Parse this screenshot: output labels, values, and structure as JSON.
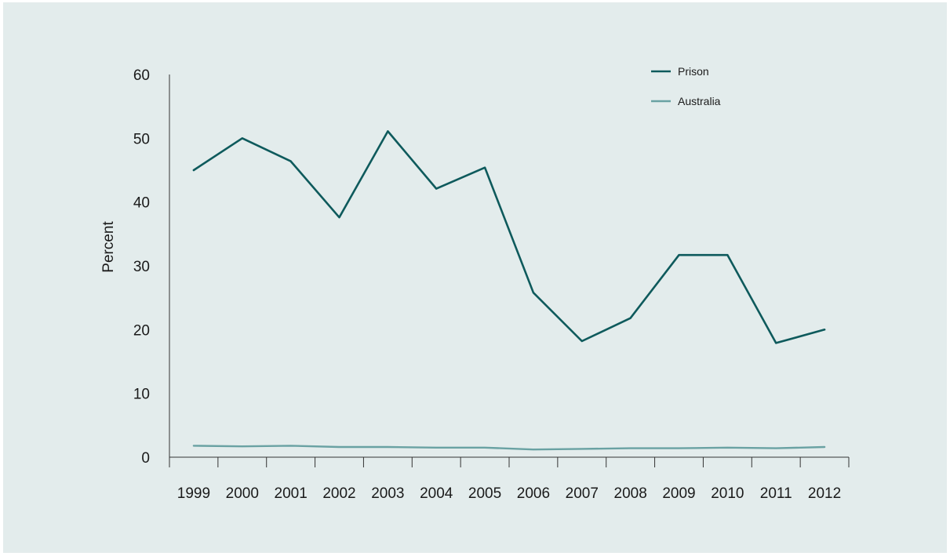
{
  "colors": {
    "background": "#e3ecec",
    "axis": "#333333",
    "prison": "#0e5a5c",
    "australia": "#6aa2a3"
  },
  "chart_data": {
    "type": "line",
    "title": "",
    "xlabel": "",
    "ylabel": "Percent",
    "categories": [
      "1999",
      "2000",
      "2001",
      "2002",
      "2003",
      "2004",
      "2005",
      "2006",
      "2007",
      "2008",
      "2009",
      "2010",
      "2011",
      "2012"
    ],
    "yticks": [
      "0",
      "10",
      "20",
      "30",
      "40",
      "50",
      "60"
    ],
    "ylim": [
      0,
      60
    ],
    "grid": false,
    "legend_position": "top-right",
    "series": [
      {
        "name": "Prison",
        "color": "#0e5a5c",
        "values": [
          45,
          50,
          46.4,
          37.6,
          51.1,
          42.1,
          45.4,
          25.8,
          18.2,
          21.8,
          31.7,
          31.7,
          17.9,
          20
        ]
      },
      {
        "name": "Australia",
        "color": "#6aa2a3",
        "values": [
          1.8,
          1.7,
          1.8,
          1.6,
          1.6,
          1.5,
          1.5,
          1.2,
          1.3,
          1.4,
          1.4,
          1.5,
          1.4,
          1.6
        ]
      }
    ]
  }
}
